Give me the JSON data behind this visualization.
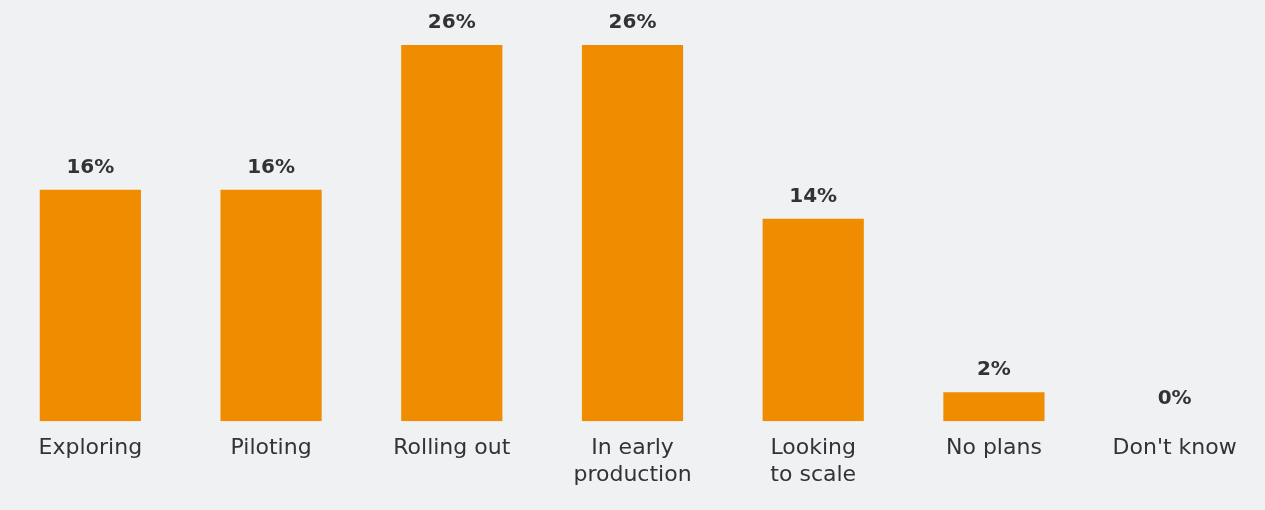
{
  "chart_data": {
    "type": "bar",
    "categories": [
      "Exploring",
      "Piloting",
      "Rolling out",
      "In early production",
      "Looking to scale",
      "No plans",
      "Don't know"
    ],
    "values": [
      16,
      16,
      26,
      26,
      14,
      2,
      0
    ],
    "value_labels": [
      "16%",
      "16%",
      "26%",
      "26%",
      "14%",
      "2%",
      "0%"
    ],
    "color": "#f08c00",
    "grid": false,
    "legend": false
  }
}
